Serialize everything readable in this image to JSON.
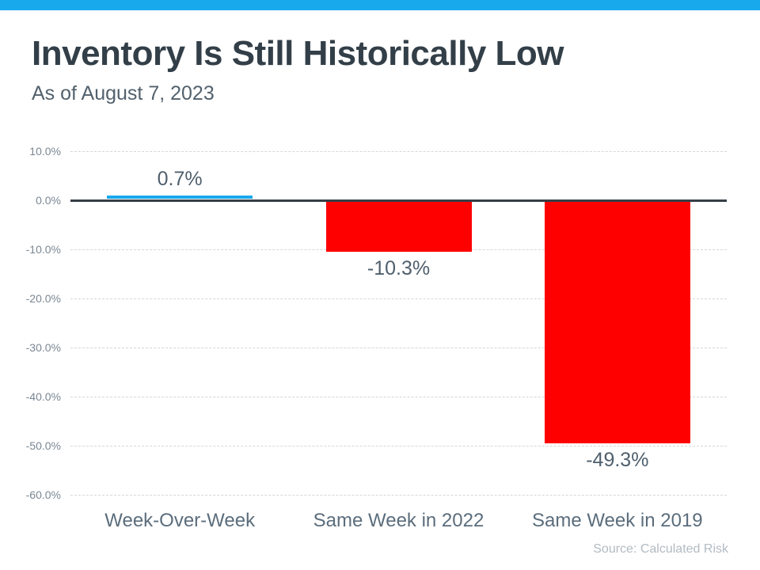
{
  "page": {
    "accent_color": "#18a8ec",
    "title": "Inventory Is Still Historically Low",
    "subtitle": "As of August 7, 2023",
    "source": "Source: Calculated Risk"
  },
  "chart_data": {
    "type": "bar",
    "title": "Inventory Is Still Historically Low",
    "subtitle": "As of August 7, 2023",
    "categories": [
      "Week-Over-Week",
      "Same Week in 2022",
      "Same Week in 2019"
    ],
    "values": [
      0.7,
      -10.3,
      -49.3
    ],
    "data_labels": [
      "0.7%",
      "-10.3%",
      "-49.3%"
    ],
    "bar_colors": [
      "#18a8ec",
      "#ff0000",
      "#ff0000"
    ],
    "yticks": [
      10,
      0,
      -10,
      -20,
      -30,
      -40,
      -50,
      -60
    ],
    "ytick_labels": [
      "10.0%",
      "0.0%",
      "-10.0%",
      "-20.0%",
      "-30.0%",
      "-40.0%",
      "-50.0%",
      "-60.0%"
    ],
    "ylim": [
      -60,
      10
    ],
    "xlabel": "",
    "ylabel": "",
    "grid": true,
    "legend": false,
    "zero_line": true,
    "source": "Source: Calculated Risk"
  }
}
